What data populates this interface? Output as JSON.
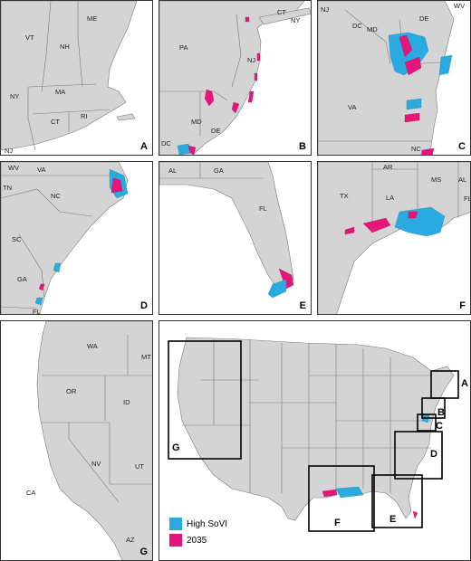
{
  "colors": {
    "high_sovi": "#29abe2",
    "y2035": "#e6157a",
    "land": "#d4d4d4",
    "border": "#7a7a7a"
  },
  "panels": {
    "A": {
      "letter": "A",
      "states": [
        "ME",
        "VT",
        "NH",
        "NY",
        "MA",
        "CT",
        "RI",
        "NJ"
      ]
    },
    "B": {
      "letter": "B",
      "states": [
        "CT",
        "NY",
        "NJ",
        "PA",
        "MD",
        "DE",
        "DC"
      ]
    },
    "C": {
      "letter": "C",
      "states": [
        "NJ",
        "WV",
        "DC",
        "MD",
        "DE",
        "VA",
        "NC"
      ]
    },
    "D": {
      "letter": "D",
      "states": [
        "WV",
        "VA",
        "TN",
        "NC",
        "SC",
        "GA",
        "FL"
      ]
    },
    "E": {
      "letter": "E",
      "states": [
        "AL",
        "GA",
        "FL"
      ]
    },
    "F": {
      "letter": "F",
      "states": [
        "AR",
        "MS",
        "AL",
        "TX",
        "LA",
        "FL"
      ]
    },
    "G": {
      "letter": "G",
      "states": [
        "WA",
        "MT",
        "OR",
        "ID",
        "NV",
        "UT",
        "CA",
        "AZ"
      ]
    }
  },
  "overview": {
    "box_letters": [
      "A",
      "B",
      "C",
      "D",
      "E",
      "F",
      "G"
    ]
  },
  "legend": [
    {
      "label": "High SoVI",
      "color": "#29abe2"
    },
    {
      "label": "2035",
      "color": "#e6157a"
    }
  ]
}
